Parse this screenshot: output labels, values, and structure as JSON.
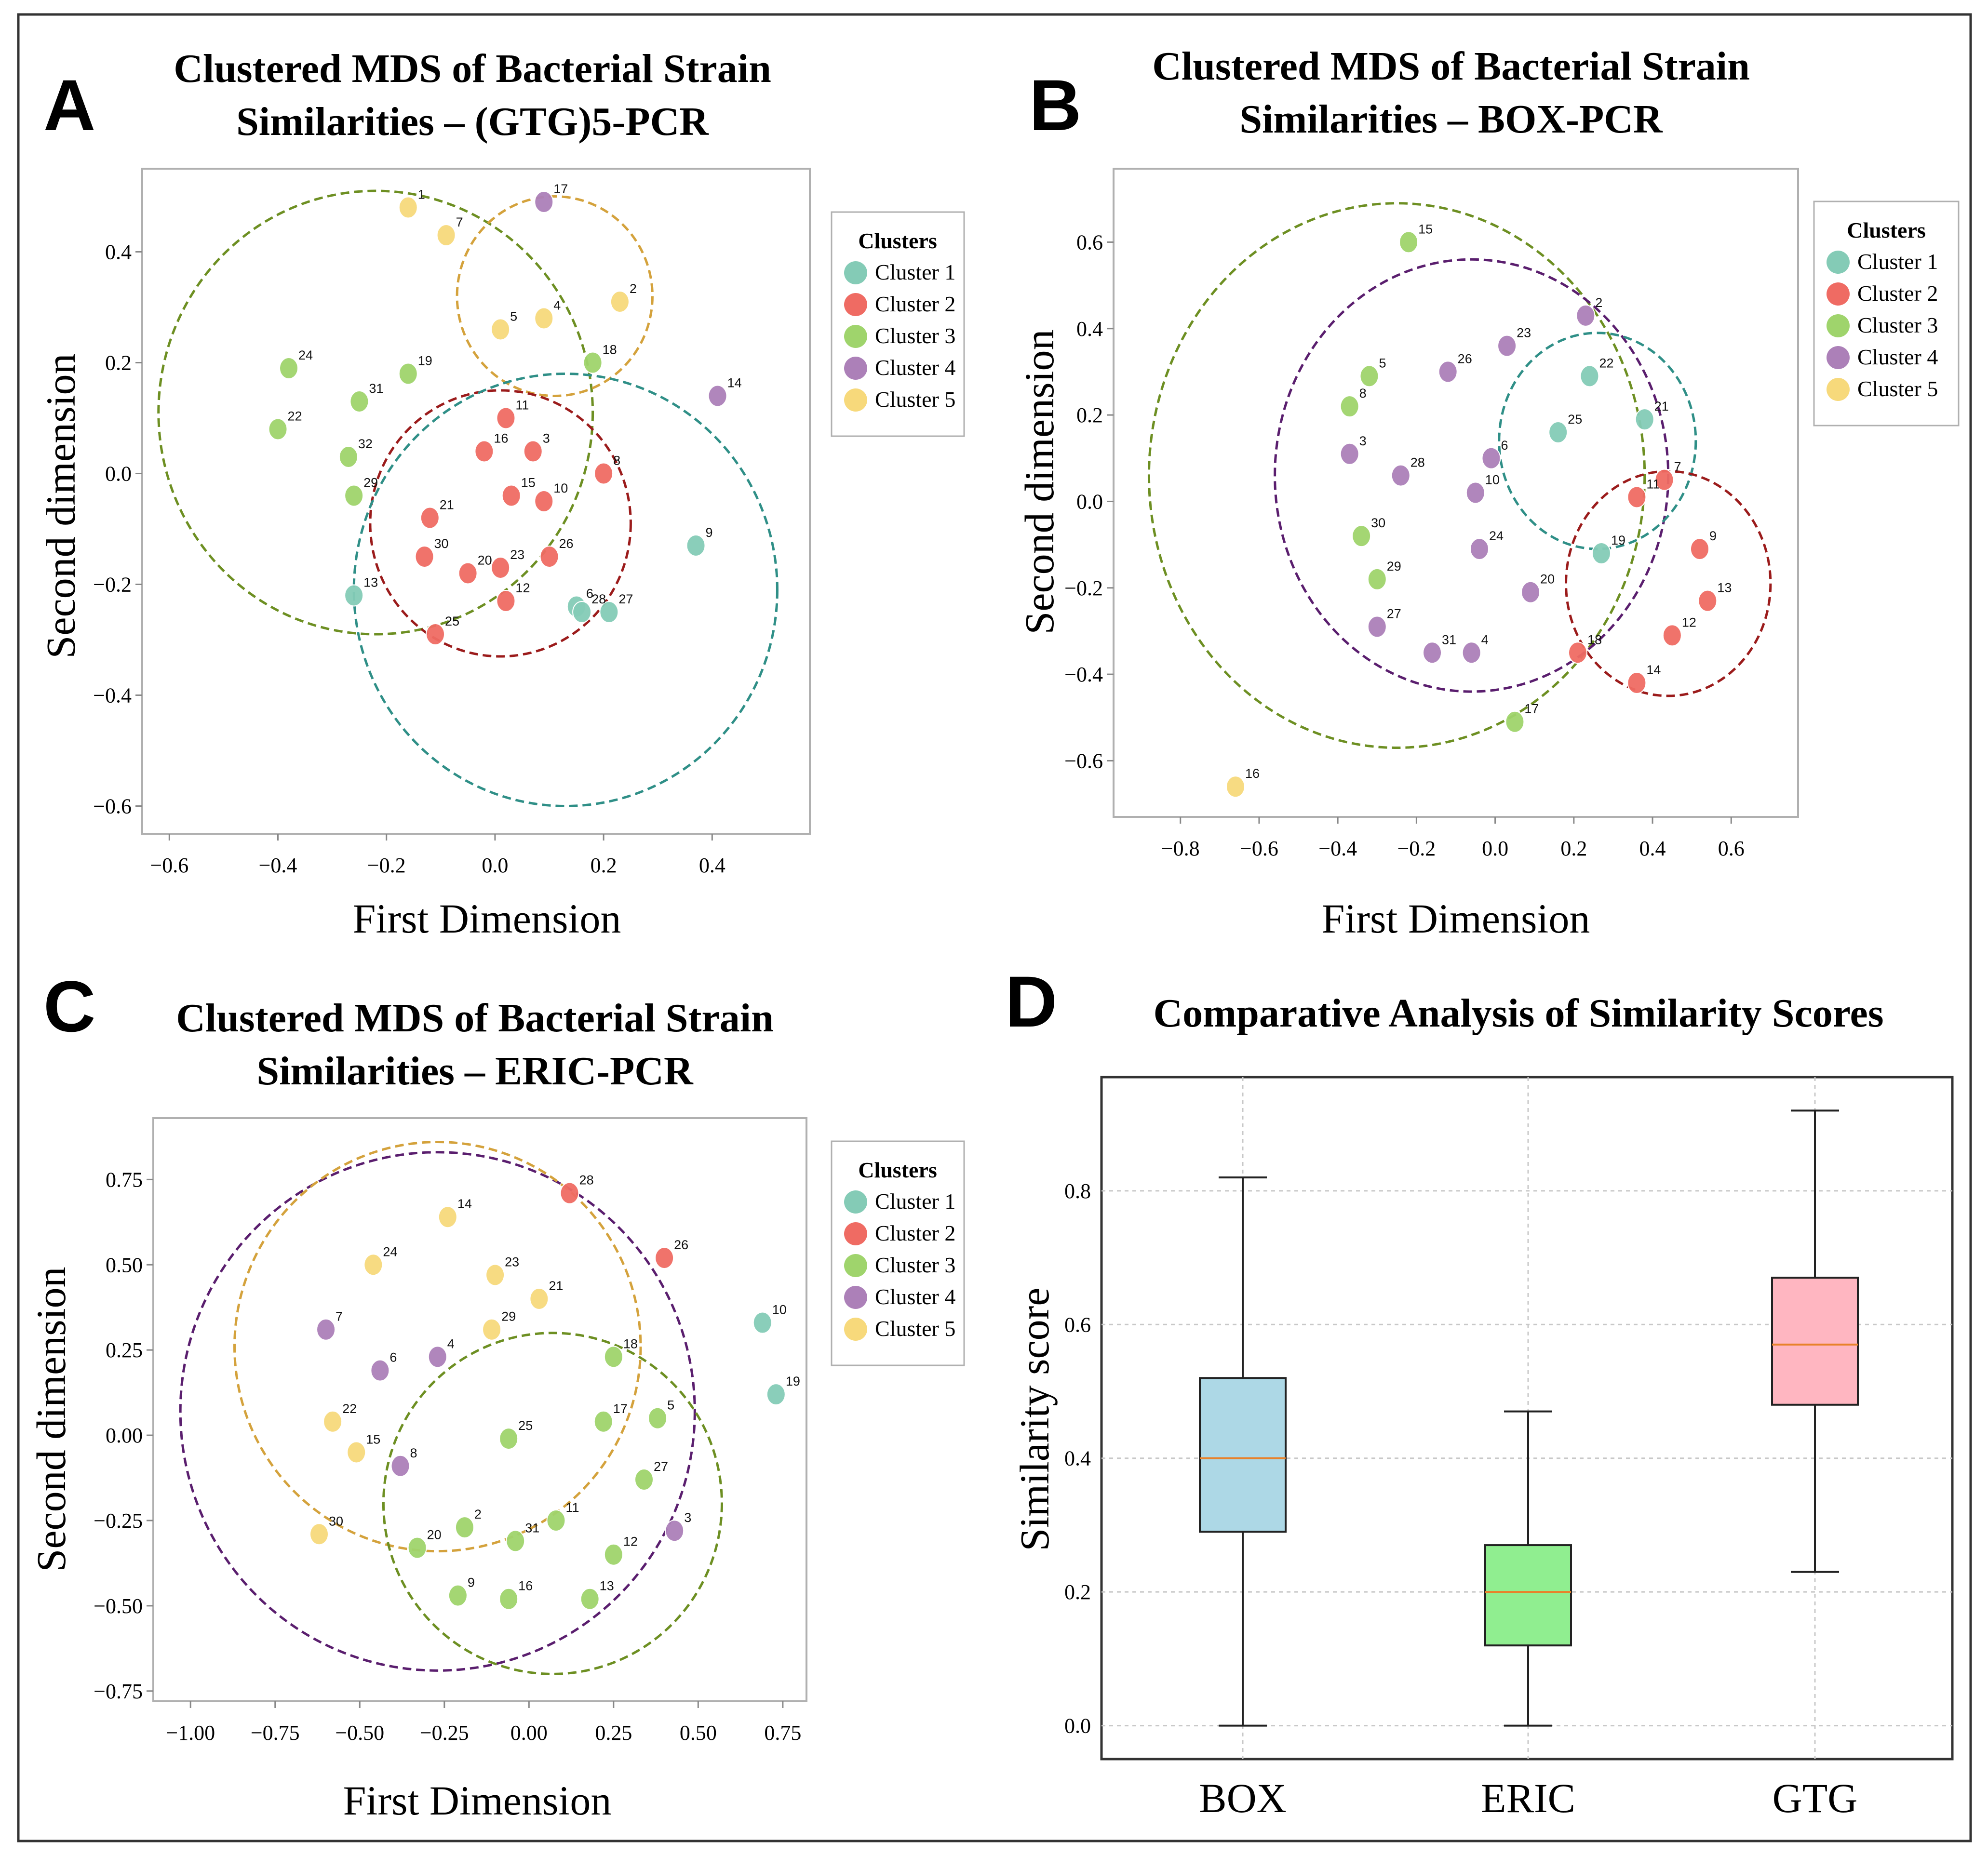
{
  "cluster_colors": [
    "#84cbb6",
    "#ef6b63",
    "#9fd46c",
    "#ac80b8",
    "#f7d97b"
  ],
  "chart_data": [
    {
      "type": "scatter",
      "panel": "A",
      "title_lines": [
        "Clustered MDS of Bacterial Strain",
        "Similarities – (GTG)5-PCR"
      ],
      "xlabel": "First Dimension",
      "ylabel": "Second dimension",
      "xlim": [
        -0.65,
        0.58
      ],
      "ylim": [
        -0.65,
        0.55
      ],
      "xticks": [
        -0.6,
        -0.4,
        -0.2,
        0.0,
        0.2,
        0.4
      ],
      "xtick_labels": [
        "−0.6",
        "−0.4",
        "−0.2",
        "0.0",
        "0.2",
        "0.4"
      ],
      "yticks": [
        0.4,
        0.2,
        0.0,
        -0.2,
        -0.4,
        -0.6
      ],
      "ytick_labels": [
        "0.4",
        "0.2",
        "0.0",
        "−0.2",
        "−0.4",
        "−0.6"
      ],
      "legend_title": "Clusters",
      "legend_labels": [
        "Cluster 1",
        "Cluster 2",
        "Cluster 3",
        "Cluster 4",
        "Cluster 5"
      ],
      "legend_position": "outside-right",
      "points": [
        {
          "id": "1",
          "x": -0.16,
          "y": 0.48,
          "cluster": 5
        },
        {
          "id": "2",
          "x": 0.23,
          "y": 0.31,
          "cluster": 5
        },
        {
          "id": "3",
          "x": 0.07,
          "y": 0.04,
          "cluster": 2
        },
        {
          "id": "4",
          "x": 0.09,
          "y": 0.28,
          "cluster": 5
        },
        {
          "id": "5",
          "x": 0.01,
          "y": 0.26,
          "cluster": 5
        },
        {
          "id": "6",
          "x": 0.15,
          "y": -0.24,
          "cluster": 1
        },
        {
          "id": "7",
          "x": -0.09,
          "y": 0.43,
          "cluster": 5
        },
        {
          "id": "8",
          "x": 0.2,
          "y": 0.0,
          "cluster": 2
        },
        {
          "id": "9",
          "x": 0.37,
          "y": -0.13,
          "cluster": 1
        },
        {
          "id": "10",
          "x": 0.09,
          "y": -0.05,
          "cluster": 2
        },
        {
          "id": "11",
          "x": 0.02,
          "y": 0.1,
          "cluster": 2
        },
        {
          "id": "12",
          "x": 0.02,
          "y": -0.23,
          "cluster": 2
        },
        {
          "id": "13",
          "x": -0.26,
          "y": -0.22,
          "cluster": 1
        },
        {
          "id": "14",
          "x": 0.41,
          "y": 0.14,
          "cluster": 4
        },
        {
          "id": "15",
          "x": 0.03,
          "y": -0.04,
          "cluster": 2
        },
        {
          "id": "16",
          "x": -0.02,
          "y": 0.04,
          "cluster": 2
        },
        {
          "id": "17",
          "x": 0.09,
          "y": 0.49,
          "cluster": 4
        },
        {
          "id": "18",
          "x": 0.18,
          "y": 0.2,
          "cluster": 3
        },
        {
          "id": "19",
          "x": -0.16,
          "y": 0.18,
          "cluster": 3
        },
        {
          "id": "20",
          "x": -0.05,
          "y": -0.18,
          "cluster": 2
        },
        {
          "id": "21",
          "x": -0.12,
          "y": -0.08,
          "cluster": 2
        },
        {
          "id": "22",
          "x": -0.4,
          "y": 0.08,
          "cluster": 3
        },
        {
          "id": "23",
          "x": 0.01,
          "y": -0.17,
          "cluster": 2
        },
        {
          "id": "24",
          "x": -0.38,
          "y": 0.19,
          "cluster": 3
        },
        {
          "id": "25",
          "x": -0.11,
          "y": -0.29,
          "cluster": 2
        },
        {
          "id": "26",
          "x": 0.1,
          "y": -0.15,
          "cluster": 2
        },
        {
          "id": "27",
          "x": 0.21,
          "y": -0.25,
          "cluster": 1
        },
        {
          "id": "28",
          "x": 0.16,
          "y": -0.25,
          "cluster": 1
        },
        {
          "id": "29",
          "x": -0.26,
          "y": -0.04,
          "cluster": 3
        },
        {
          "id": "30",
          "x": -0.13,
          "y": -0.15,
          "cluster": 2
        },
        {
          "id": "31",
          "x": -0.25,
          "y": 0.13,
          "cluster": 3
        },
        {
          "id": "32",
          "x": -0.27,
          "y": 0.03,
          "cluster": 3
        }
      ],
      "circles": [
        {
          "cluster": 3,
          "cx": -0.22,
          "cy": 0.11,
          "r": 0.4
        },
        {
          "cluster": 5,
          "cx": 0.11,
          "cy": 0.32,
          "r": 0.18
        },
        {
          "cluster": 2,
          "cx": 0.01,
          "cy": -0.09,
          "r": 0.24
        },
        {
          "cluster": 1,
          "cx": 0.13,
          "cy": -0.21,
          "r": 0.39
        }
      ]
    },
    {
      "type": "scatter",
      "panel": "B",
      "title_lines": [
        "Clustered MDS of Bacterial Strain",
        "Similarities – BOX-PCR"
      ],
      "xlabel": "First Dimension",
      "ylabel": "Second dimension",
      "xlim": [
        -0.97,
        0.77
      ],
      "ylim": [
        -0.73,
        0.77
      ],
      "xticks": [
        -0.8,
        -0.6,
        -0.4,
        -0.2,
        0.0,
        0.2,
        0.4,
        0.6
      ],
      "xtick_labels": [
        "−0.8",
        "−0.6",
        "−0.4",
        "−0.2",
        "0.0",
        "0.2",
        "0.4",
        "0.6"
      ],
      "yticks": [
        0.6,
        0.4,
        0.2,
        0.0,
        -0.2,
        -0.4,
        -0.6
      ],
      "ytick_labels": [
        "0.6",
        "0.4",
        "0.2",
        "0.0",
        "−0.2",
        "−0.4",
        "−0.6"
      ],
      "legend_title": "Clusters",
      "legend_labels": [
        "Cluster 1",
        "Cluster 2",
        "Cluster 3",
        "Cluster 4",
        "Cluster 5"
      ],
      "legend_position": "outside-right",
      "points": [
        {
          "id": "2",
          "x": 0.23,
          "y": 0.43,
          "cluster": 4
        },
        {
          "id": "3",
          "x": -0.37,
          "y": 0.11,
          "cluster": 4
        },
        {
          "id": "4",
          "x": -0.06,
          "y": -0.35,
          "cluster": 4
        },
        {
          "id": "5",
          "x": -0.32,
          "y": 0.29,
          "cluster": 3
        },
        {
          "id": "6",
          "x": -0.01,
          "y": 0.1,
          "cluster": 4
        },
        {
          "id": "7",
          "x": 0.43,
          "y": 0.05,
          "cluster": 2
        },
        {
          "id": "8",
          "x": -0.37,
          "y": 0.22,
          "cluster": 3
        },
        {
          "id": "9",
          "x": 0.52,
          "y": -0.11,
          "cluster": 2
        },
        {
          "id": "10",
          "x": -0.05,
          "y": 0.02,
          "cluster": 4
        },
        {
          "id": "11",
          "x": 0.36,
          "y": 0.01,
          "cluster": 2
        },
        {
          "id": "12",
          "x": 0.45,
          "y": -0.31,
          "cluster": 2
        },
        {
          "id": "13",
          "x": 0.54,
          "y": -0.23,
          "cluster": 2
        },
        {
          "id": "14",
          "x": 0.36,
          "y": -0.42,
          "cluster": 2
        },
        {
          "id": "15",
          "x": -0.22,
          "y": 0.6,
          "cluster": 3
        },
        {
          "id": "16",
          "x": -0.66,
          "y": -0.66,
          "cluster": 5
        },
        {
          "id": "17",
          "x": 0.05,
          "y": -0.51,
          "cluster": 3
        },
        {
          "id": "18",
          "x": 0.21,
          "y": -0.35,
          "cluster": 2
        },
        {
          "id": "19",
          "x": 0.27,
          "y": -0.12,
          "cluster": 1
        },
        {
          "id": "20",
          "x": 0.09,
          "y": -0.21,
          "cluster": 4
        },
        {
          "id": "21",
          "x": 0.38,
          "y": 0.19,
          "cluster": 1
        },
        {
          "id": "22",
          "x": 0.24,
          "y": 0.29,
          "cluster": 1
        },
        {
          "id": "23",
          "x": 0.03,
          "y": 0.36,
          "cluster": 4
        },
        {
          "id": "24",
          "x": -0.04,
          "y": -0.11,
          "cluster": 4
        },
        {
          "id": "25",
          "x": 0.16,
          "y": 0.16,
          "cluster": 1
        },
        {
          "id": "26",
          "x": -0.12,
          "y": 0.3,
          "cluster": 4
        },
        {
          "id": "27",
          "x": -0.3,
          "y": -0.29,
          "cluster": 4
        },
        {
          "id": "28",
          "x": -0.24,
          "y": 0.06,
          "cluster": 4
        },
        {
          "id": "29",
          "x": -0.3,
          "y": -0.18,
          "cluster": 3
        },
        {
          "id": "30",
          "x": -0.34,
          "y": -0.08,
          "cluster": 3
        },
        {
          "id": "31",
          "x": -0.16,
          "y": -0.35,
          "cluster": 4
        }
      ],
      "circles": [
        {
          "cluster": 3,
          "cx": -0.25,
          "cy": 0.06,
          "r": 0.63
        },
        {
          "cluster": 4,
          "cx": -0.06,
          "cy": 0.06,
          "r": 0.5
        },
        {
          "cluster": 1,
          "cx": 0.26,
          "cy": 0.14,
          "r": 0.25
        },
        {
          "cluster": 2,
          "cx": 0.44,
          "cy": -0.19,
          "r": 0.26
        }
      ]
    },
    {
      "type": "scatter",
      "panel": "C",
      "title_lines": [
        "Clustered MDS of Bacterial Strain",
        "Similarities – ERIC-PCR"
      ],
      "xlabel": "First Dimension",
      "ylabel": "Second dimension",
      "xlim": [
        -1.11,
        0.82
      ],
      "ylim": [
        -0.78,
        0.93
      ],
      "xticks": [
        -1.0,
        -0.75,
        -0.5,
        -0.25,
        0.0,
        0.25,
        0.5,
        0.75
      ],
      "xtick_labels": [
        "−1.00",
        "−0.75",
        "−0.50",
        "−0.25",
        "0.00",
        "0.25",
        "0.50",
        "0.75"
      ],
      "yticks": [
        0.75,
        0.5,
        0.25,
        0.0,
        -0.25,
        -0.5,
        -0.75
      ],
      "ytick_labels": [
        "0.75",
        "0.50",
        "0.25",
        "0.00",
        "−0.25",
        "−0.50",
        "−0.75"
      ],
      "legend_title": "Clusters",
      "legend_labels": [
        "Cluster 1",
        "Cluster 2",
        "Cluster 3",
        "Cluster 4",
        "Cluster 5"
      ],
      "legend_position": "outside-right",
      "points": [
        {
          "id": "2",
          "x": -0.19,
          "y": -0.27,
          "cluster": 3
        },
        {
          "id": "3",
          "x": 0.43,
          "y": -0.28,
          "cluster": 4
        },
        {
          "id": "4",
          "x": -0.27,
          "y": 0.23,
          "cluster": 4
        },
        {
          "id": "5",
          "x": 0.38,
          "y": 0.05,
          "cluster": 3
        },
        {
          "id": "6",
          "x": -0.44,
          "y": 0.19,
          "cluster": 4
        },
        {
          "id": "7",
          "x": -0.6,
          "y": 0.31,
          "cluster": 4
        },
        {
          "id": "8",
          "x": -0.38,
          "y": -0.09,
          "cluster": 4
        },
        {
          "id": "9",
          "x": -0.21,
          "y": -0.47,
          "cluster": 3
        },
        {
          "id": "10",
          "x": 0.69,
          "y": 0.33,
          "cluster": 1
        },
        {
          "id": "11",
          "x": 0.08,
          "y": -0.25,
          "cluster": 3
        },
        {
          "id": "12",
          "x": 0.25,
          "y": -0.35,
          "cluster": 3
        },
        {
          "id": "13",
          "x": 0.18,
          "y": -0.48,
          "cluster": 3
        },
        {
          "id": "14",
          "x": -0.24,
          "y": 0.64,
          "cluster": 5
        },
        {
          "id": "15",
          "x": -0.51,
          "y": -0.05,
          "cluster": 5
        },
        {
          "id": "16",
          "x": -0.06,
          "y": -0.48,
          "cluster": 3
        },
        {
          "id": "17",
          "x": 0.22,
          "y": 0.04,
          "cluster": 3
        },
        {
          "id": "18",
          "x": 0.25,
          "y": 0.23,
          "cluster": 3
        },
        {
          "id": "19",
          "x": 0.73,
          "y": 0.12,
          "cluster": 1
        },
        {
          "id": "20",
          "x": -0.33,
          "y": -0.33,
          "cluster": 3
        },
        {
          "id": "21",
          "x": 0.03,
          "y": 0.4,
          "cluster": 5
        },
        {
          "id": "22",
          "x": -0.58,
          "y": 0.04,
          "cluster": 5
        },
        {
          "id": "23",
          "x": -0.1,
          "y": 0.47,
          "cluster": 5
        },
        {
          "id": "24",
          "x": -0.46,
          "y": 0.5,
          "cluster": 5
        },
        {
          "id": "25",
          "x": -0.06,
          "y": -0.01,
          "cluster": 3
        },
        {
          "id": "26",
          "x": 0.4,
          "y": 0.52,
          "cluster": 2
        },
        {
          "id": "27",
          "x": 0.34,
          "y": -0.13,
          "cluster": 3
        },
        {
          "id": "28",
          "x": 0.12,
          "y": 0.71,
          "cluster": 2
        },
        {
          "id": "29",
          "x": -0.11,
          "y": 0.31,
          "cluster": 5
        },
        {
          "id": "30",
          "x": -0.62,
          "y": -0.29,
          "cluster": 5
        },
        {
          "id": "31",
          "x": -0.04,
          "y": -0.31,
          "cluster": 3
        }
      ],
      "circles": [
        {
          "cluster": 4,
          "cx": -0.27,
          "cy": 0.07,
          "r": 0.76
        },
        {
          "cluster": 5,
          "cx": -0.27,
          "cy": 0.26,
          "r": 0.6
        },
        {
          "cluster": 3,
          "cx": 0.07,
          "cy": -0.2,
          "r": 0.5
        }
      ]
    },
    {
      "type": "box",
      "panel": "D",
      "title": "Comparative Analysis of Similarity Scores",
      "xlabel": "",
      "ylabel": "Similarity  score",
      "ylim": [
        -0.05,
        0.97
      ],
      "yticks": [
        0.0,
        0.2,
        0.4,
        0.6,
        0.8
      ],
      "ytick_labels": [
        "0.0",
        "0.2",
        "0.4",
        "0.6",
        "0.8"
      ],
      "grid": true,
      "categories": [
        "BOX",
        "ERIC",
        "GTG"
      ],
      "boxes": [
        {
          "name": "BOX",
          "min": 0.0,
          "q1": 0.29,
          "median": 0.4,
          "q3": 0.52,
          "max": 0.82,
          "color": "#add8e6"
        },
        {
          "name": "ERIC",
          "min": 0.0,
          "q1": 0.12,
          "median": 0.2,
          "q3": 0.27,
          "max": 0.47,
          "color": "#90ee90"
        },
        {
          "name": "GTG",
          "min": 0.23,
          "q1": 0.48,
          "median": 0.57,
          "q3": 0.67,
          "max": 0.92,
          "color": "#ffb6c1"
        }
      ]
    }
  ]
}
